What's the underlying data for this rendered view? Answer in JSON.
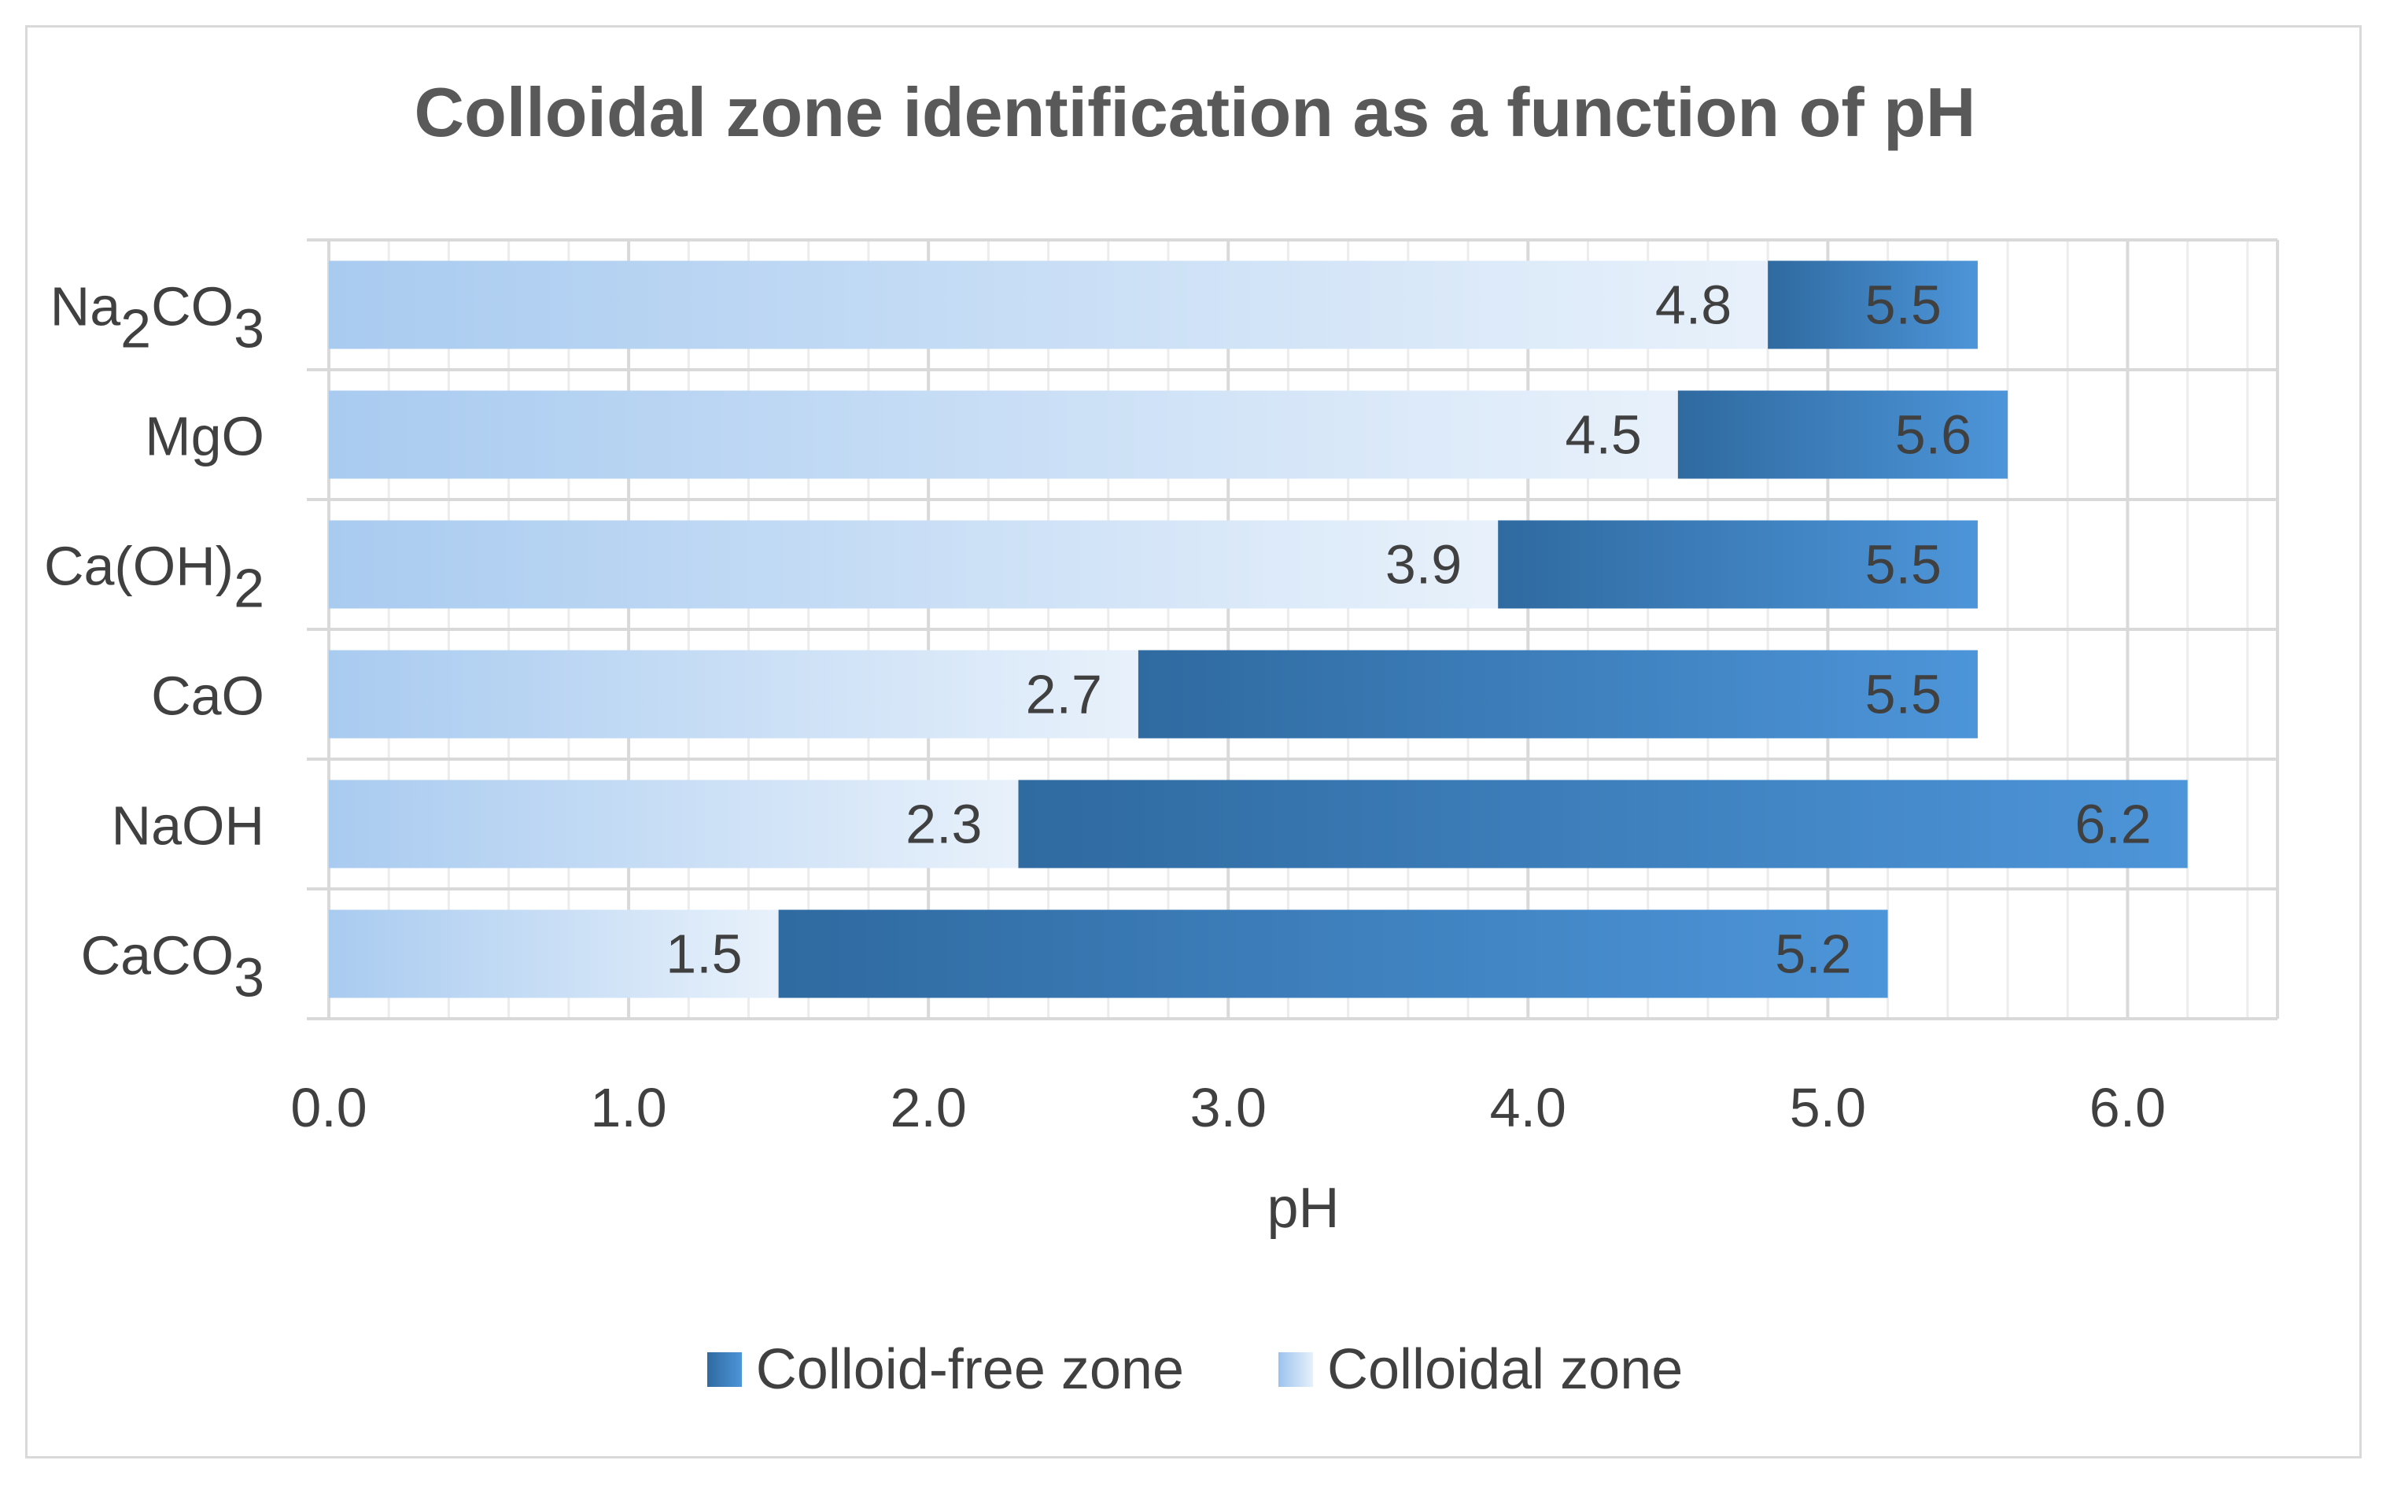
{
  "chart_data": {
    "type": "bar",
    "orientation": "horizontal",
    "stacked": true,
    "title": "Colloidal zone identification as a function of pH",
    "xlabel": "pH",
    "ylabel": "",
    "xlim": [
      0,
      6.5
    ],
    "xticks": [
      "0.0",
      "1.0",
      "2.0",
      "3.0",
      "4.0",
      "5.0",
      "6.0"
    ],
    "xtick_values": [
      0,
      1,
      2,
      3,
      4,
      5,
      6
    ],
    "grid": true,
    "legend_position": "bottom",
    "categories": [
      {
        "base": "Na",
        "sub1": "2",
        "mid": "CO",
        "sub2": "3",
        "end": ""
      },
      {
        "base": "MgO",
        "sub1": "",
        "mid": "",
        "sub2": "",
        "end": ""
      },
      {
        "base": "Ca(OH)",
        "sub1": "2",
        "mid": "",
        "sub2": "",
        "end": ""
      },
      {
        "base": "CaO",
        "sub1": "",
        "mid": "",
        "sub2": "",
        "end": ""
      },
      {
        "base": "NaOH",
        "sub1": "",
        "mid": "",
        "sub2": "",
        "end": ""
      },
      {
        "base": "CaCO",
        "sub1": "3",
        "mid": "",
        "sub2": "",
        "end": ""
      }
    ],
    "series": [
      {
        "name": "Colloidal zone",
        "values": [
          4.8,
          4.5,
          3.9,
          2.7,
          2.3,
          1.5
        ],
        "labels": [
          "4.8",
          "4.5",
          "3.9",
          "2.7",
          "2.3",
          "1.5"
        ]
      },
      {
        "name": "Colloid-free zone",
        "end_values": [
          5.5,
          5.6,
          5.5,
          5.5,
          6.2,
          5.2
        ],
        "labels": [
          "5.5",
          "5.6",
          "5.5",
          "5.5",
          "6.2",
          "5.2"
        ]
      }
    ],
    "colors": {
      "colloidal_dark": "#a9cbf0",
      "colloidal_light": "#e8f1fb",
      "free_dark": "#2f6aa0",
      "free_light": "#4d95d9",
      "grid_major": "#d9d9d9",
      "grid_minor": "#ececec",
      "text": "#404040",
      "title": "#595959"
    }
  },
  "legend": {
    "free_label": "Colloid-free zone",
    "colloidal_label": "Colloidal zone"
  }
}
